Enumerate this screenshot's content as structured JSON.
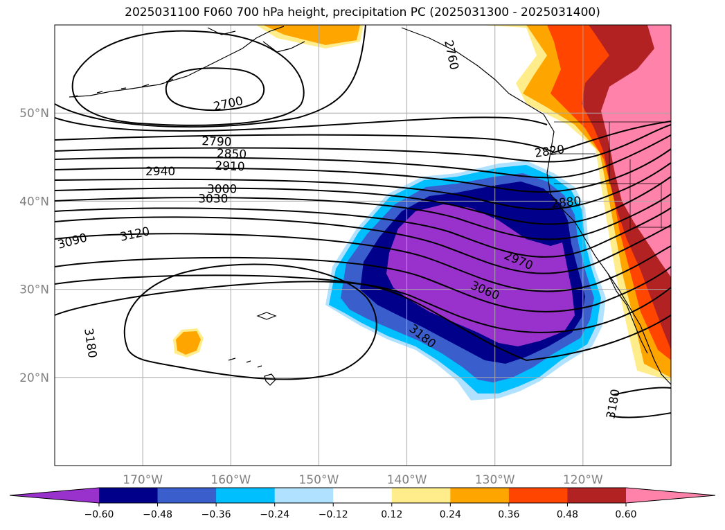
{
  "title": "2025031100 F060 700 hPa height, precipitation PC (2025031300 - 2025031400)",
  "map": {
    "lon_range": [
      -180,
      -110
    ],
    "lat_range": [
      10,
      60
    ],
    "lon_ticks": [
      {
        "value": -170,
        "label": "170°W"
      },
      {
        "value": -160,
        "label": "160°W"
      },
      {
        "value": -150,
        "label": "150°W"
      },
      {
        "value": -140,
        "label": "140°W"
      },
      {
        "value": -130,
        "label": "130°W"
      },
      {
        "value": -120,
        "label": "120°W"
      }
    ],
    "lat_ticks": [
      {
        "value": 20,
        "label": "20°N"
      },
      {
        "value": 30,
        "label": "30°N"
      },
      {
        "value": 40,
        "label": "40°N"
      },
      {
        "value": 50,
        "label": "50°N"
      }
    ],
    "grid": true,
    "tick_color": "#808080"
  },
  "contour_labels": [
    {
      "text": "2760",
      "lon": -134.9,
      "lat": 56.6,
      "angle": 78
    },
    {
      "text": "2700",
      "lon": -160.3,
      "lat": 51.1,
      "angle": -12
    },
    {
      "text": "2790",
      "lon": -161.6,
      "lat": 46.8,
      "angle": 2
    },
    {
      "text": "2850",
      "lon": -159.9,
      "lat": 45.4,
      "angle": 2
    },
    {
      "text": "2910",
      "lon": -160.1,
      "lat": 44.0,
      "angle": 2
    },
    {
      "text": "2940",
      "lon": -168.0,
      "lat": 43.4,
      "angle": 0
    },
    {
      "text": "2820",
      "lon": -123.8,
      "lat": 45.7,
      "angle": -8
    },
    {
      "text": "3000",
      "lon": -161.0,
      "lat": 41.4,
      "angle": 0
    },
    {
      "text": "3030",
      "lon": -162.0,
      "lat": 40.3,
      "angle": 0
    },
    {
      "text": "2880",
      "lon": -121.9,
      "lat": 39.9,
      "angle": -6
    },
    {
      "text": "3090",
      "lon": -178.0,
      "lat": 35.5,
      "angle": -15
    },
    {
      "text": "3120",
      "lon": -170.9,
      "lat": 36.3,
      "angle": -12
    },
    {
      "text": "2970",
      "lon": -127.3,
      "lat": 33.3,
      "angle": 23
    },
    {
      "text": "3060",
      "lon": -131.1,
      "lat": 29.9,
      "angle": 23
    },
    {
      "text": "3180",
      "lon": -175.9,
      "lat": 23.9,
      "angle": 82
    },
    {
      "text": "3180",
      "lon": -116.6,
      "lat": 17.0,
      "angle": -80
    },
    {
      "text": "3180",
      "lon": -138.2,
      "lat": 24.7,
      "angle": 38
    }
  ],
  "colorbar": {
    "ticks": [
      "−0.60",
      "−0.48",
      "−0.36",
      "−0.24",
      "−0.12",
      "0.12",
      "0.24",
      "0.36",
      "0.48",
      "0.60"
    ],
    "colors": [
      "#9932cc",
      "#00008b",
      "#3a5fcd",
      "#00bfff",
      "#b0e2ff",
      "#ffffff",
      "#ffec8b",
      "#ffa500",
      "#ff4500",
      "#b22222",
      "#ff82ab"
    ]
  },
  "colors": {
    "pos_light": "#ffec8b",
    "pos_orange": "#ffa500",
    "pos_redorange": "#ff4500",
    "pos_darkred": "#b22222",
    "pos_pink": "#ff82ab",
    "neg_light": "#b0e2ff",
    "neg_sky": "#00bfff",
    "neg_blue": "#3a5fcd",
    "neg_navy": "#00008b",
    "neg_purple": "#9932cc"
  }
}
